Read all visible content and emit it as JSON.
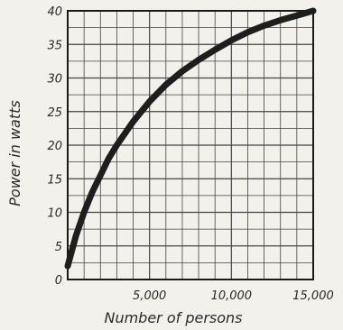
{
  "chart_data": {
    "type": "line",
    "xlabel": "Number of persons",
    "ylabel": "Power in watts",
    "xlim": [
      0,
      15000
    ],
    "ylim": [
      0,
      40
    ],
    "x_ticks": [
      5000,
      10000,
      15000
    ],
    "x_tick_labels": [
      "5,000",
      "10,000",
      "15,000"
    ],
    "y_ticks": [
      0,
      5,
      10,
      15,
      20,
      25,
      30,
      35,
      40
    ],
    "y_tick_labels": [
      "0",
      "5",
      "10",
      "15",
      "20",
      "25",
      "30",
      "35",
      "40"
    ],
    "grid": true,
    "series": [
      {
        "color": "#1e1e1e",
        "x": [
          0,
          500,
          1000,
          1500,
          2000,
          2500,
          3000,
          4000,
          5000,
          6000,
          7000,
          8000,
          9000,
          10000,
          11000,
          12000,
          13000,
          14000,
          15000
        ],
        "y": [
          2,
          6.5,
          10,
          13,
          15.5,
          18,
          20,
          23.5,
          26.5,
          29,
          31,
          32.7,
          34.2,
          35.6,
          36.8,
          37.8,
          38.6,
          39.3,
          40
        ]
      }
    ]
  }
}
